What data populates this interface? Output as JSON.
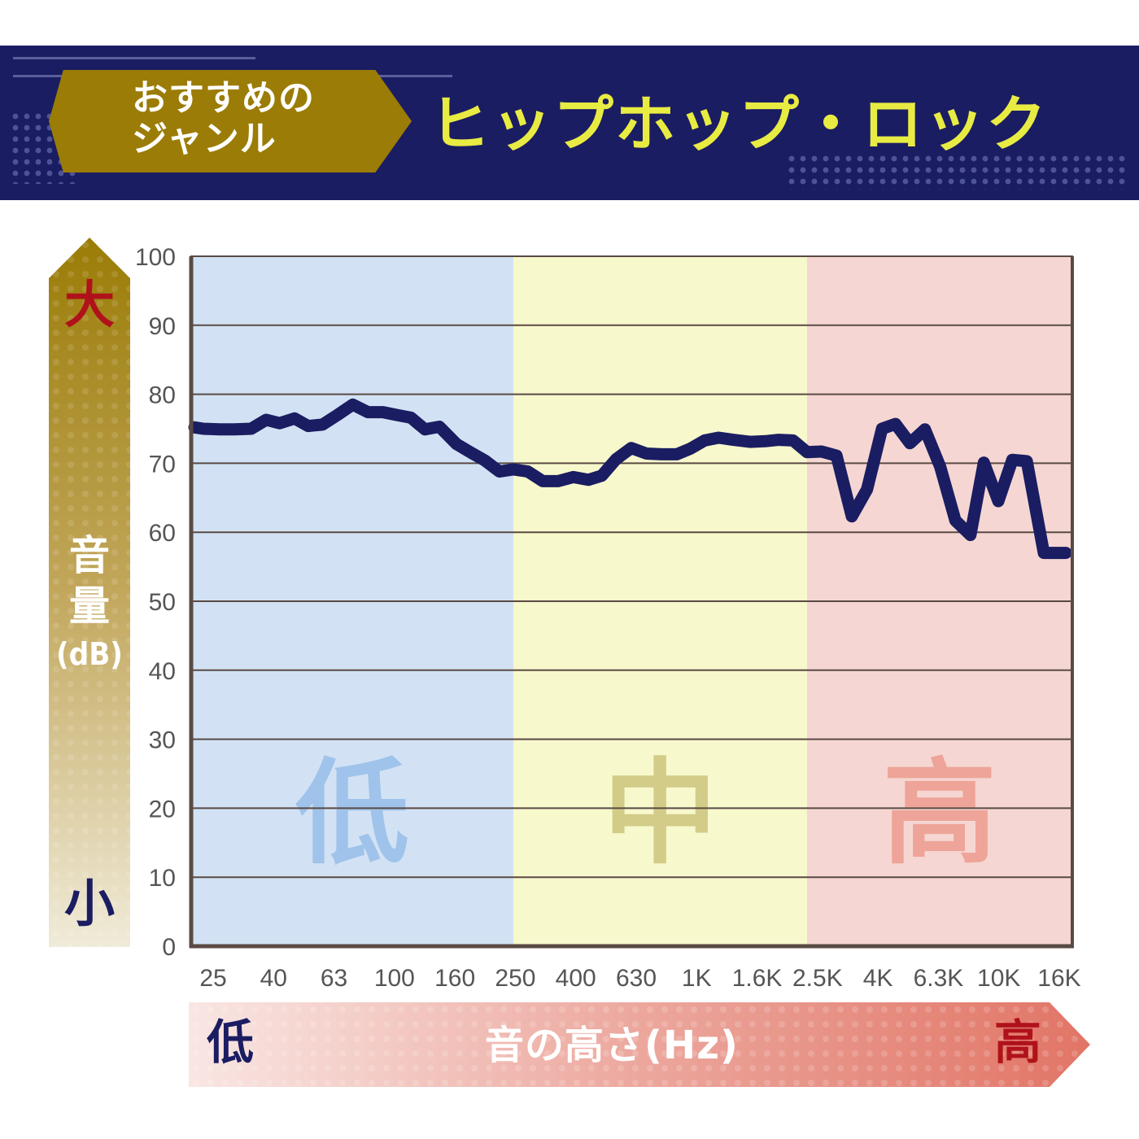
{
  "header": {
    "recommend_line1": "おすすめの",
    "recommend_line2": "ジャンル",
    "genre": "ヒップホップ・ロック"
  },
  "y_axis_arrow": {
    "top_label": "大",
    "bottom_label": "小",
    "label_chars": [
      "音",
      "量"
    ],
    "unit": "(dB)"
  },
  "x_axis_arrow": {
    "low_label": "低",
    "high_label": "高",
    "label": "音の高さ(Hz)"
  },
  "bands": [
    {
      "label": "低",
      "color": "#d2e2f4",
      "text_color": "#9fc3ea"
    },
    {
      "label": "中",
      "color": "#f7f8cc",
      "text_color": "#d2cc88"
    },
    {
      "label": "高",
      "color": "#f5d6d2",
      "text_color": "#eea498"
    }
  ],
  "colors": {
    "banner": "#1b1d62",
    "label_gold": "#9b7c06",
    "title_yellow": "#e8ec42",
    "line": "#1b1d62",
    "grid": "#5a4a44",
    "big_red": "#b0121b"
  },
  "chart_data": {
    "type": "line",
    "ylabel": "音量(dB)",
    "xlabel": "音の高さ(Hz)",
    "ylim": [
      0,
      100
    ],
    "yticks": [
      0,
      10,
      20,
      30,
      40,
      50,
      60,
      70,
      80,
      90,
      100
    ],
    "xticks": [
      "25",
      "40",
      "63",
      "100",
      "160",
      "250",
      "400",
      "630",
      "1K",
      "1.6K",
      "2.5K",
      "4K",
      "6.3K",
      "10K",
      "16K"
    ],
    "grid": true,
    "x_log_range": [
      20,
      20000
    ],
    "bands_hz": [
      [
        20,
        250
      ],
      [
        250,
        2500
      ],
      [
        2500,
        20000
      ]
    ],
    "series": [
      {
        "x": [
          20,
          22,
          25,
          28,
          32,
          36,
          40,
          45,
          50,
          56,
          63,
          71,
          80,
          90,
          100,
          112,
          125,
          140,
          160,
          180,
          200,
          224,
          250,
          280,
          315,
          355,
          400,
          450,
          500,
          560,
          630,
          710,
          800,
          900,
          1000,
          1120,
          1250,
          1400,
          1600,
          1800,
          2000,
          2240,
          2500,
          2800,
          3150,
          3550,
          4000,
          4500,
          5000,
          5600,
          6300,
          7100,
          8000,
          9000,
          10000,
          11200,
          12500,
          14000,
          16000,
          18000,
          20000
        ],
        "values": [
          75.2,
          75.0,
          74.9,
          74.9,
          75.0,
          76.3,
          75.8,
          76.5,
          75.4,
          75.6,
          77.0,
          78.5,
          77.4,
          77.4,
          77.0,
          76.6,
          74.9,
          75.3,
          72.8,
          71.5,
          70.4,
          68.8,
          69.1,
          68.8,
          67.4,
          67.4,
          68.0,
          67.6,
          68.2,
          70.6,
          72.2,
          71.4,
          71.3,
          71.3,
          72.1,
          73.3,
          73.7,
          73.4,
          73.1,
          73.2,
          73.4,
          73.3,
          71.6,
          71.7,
          71.1,
          62.3,
          66.2,
          75.0,
          75.7,
          72.9,
          74.9,
          69.5,
          61.7,
          59.6,
          70.1,
          64.5,
          70.5,
          70.3,
          57.0,
          57.0,
          57.0
        ]
      }
    ]
  }
}
